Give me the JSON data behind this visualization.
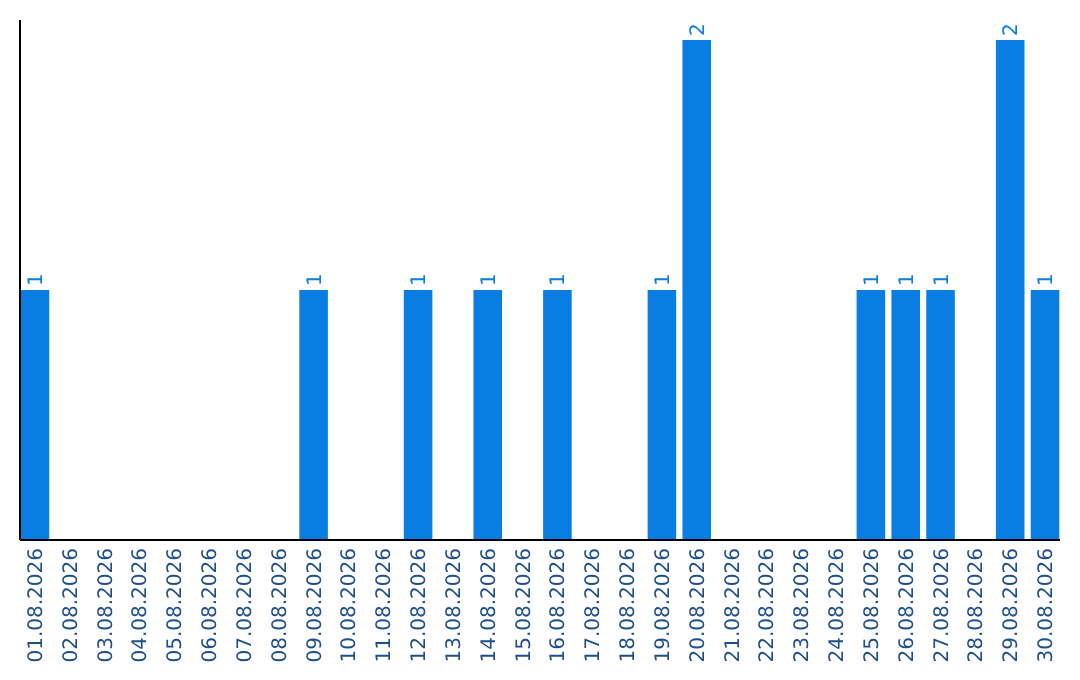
{
  "chart_data": {
    "type": "bar",
    "categories": [
      "01.08.2026",
      "02.08.2026",
      "03.08.2026",
      "04.08.2026",
      "05.08.2026",
      "06.08.2026",
      "07.08.2026",
      "08.08.2026",
      "09.08.2026",
      "10.08.2026",
      "11.08.2026",
      "12.08.2026",
      "13.08.2026",
      "14.08.2026",
      "15.08.2026",
      "16.08.2026",
      "17.08.2026",
      "18.08.2026",
      "19.08.2026",
      "20.08.2026",
      "21.08.2026",
      "22.08.2026",
      "23.08.2026",
      "24.08.2026",
      "25.08.2026",
      "26.08.2026",
      "27.08.2026",
      "28.08.2026",
      "29.08.2026",
      "30.08.2026"
    ],
    "values": [
      1,
      0,
      0,
      0,
      0,
      0,
      0,
      0,
      1,
      0,
      0,
      1,
      0,
      1,
      0,
      1,
      0,
      0,
      1,
      2,
      0,
      0,
      0,
      0,
      1,
      1,
      1,
      0,
      2,
      1
    ],
    "value_labels": [
      "1",
      null,
      null,
      null,
      null,
      null,
      null,
      null,
      "1",
      null,
      null,
      "1",
      null,
      "1",
      null,
      "1",
      null,
      null,
      "1",
      "2",
      null,
      null,
      null,
      null,
      "1",
      "1",
      "1",
      null,
      "2",
      "1"
    ],
    "color": "#0a7de3",
    "ylim": [
      0,
      2.08
    ],
    "tick_labels": "x"
  }
}
